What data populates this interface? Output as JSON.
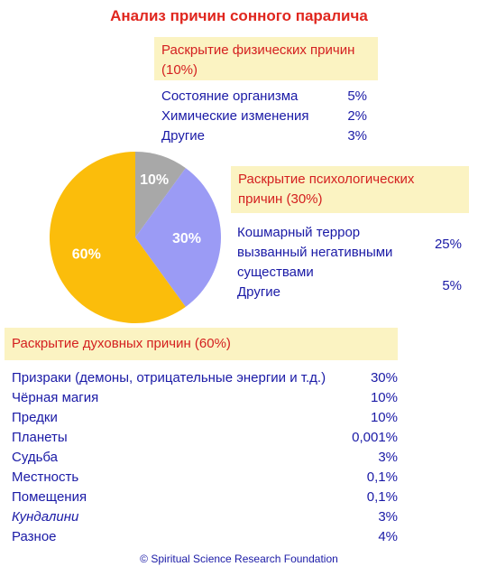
{
  "title": "Анализ причин сонного паралича",
  "physical": {
    "heading": "Раскрытие физических причин (10%)",
    "items": [
      {
        "label": "Состояние организма",
        "value": "5%"
      },
      {
        "label": "Химические изменения",
        "value": "2%"
      },
      {
        "label": "Другие",
        "value": "3%"
      }
    ]
  },
  "psychological": {
    "heading": "Раскрытие психологических причин (30%)",
    "items": [
      {
        "label": "Кошмарный террор вызванный негативными существами",
        "value": "25%"
      },
      {
        "label": "Другие",
        "value": "5%"
      }
    ]
  },
  "spiritual": {
    "heading": "Раскрытие духовных причин (60%)",
    "items": [
      {
        "label": "Призраки (демоны, отрицательные энергии и т.д.)",
        "value": "30%"
      },
      {
        "label": "Чёрная магия",
        "value": "10%"
      },
      {
        "label": "Предки",
        "value": "10%"
      },
      {
        "label": "Планеты",
        "value": "0,001%"
      },
      {
        "label": "Судьба",
        "value": "3%"
      },
      {
        "label": "Местность",
        "value": "0,1%"
      },
      {
        "label": "Помещения",
        "value": "0,1%"
      },
      {
        "label": "Кундалини",
        "value": "3%"
      },
      {
        "label": "Разное",
        "value": "4%"
      }
    ]
  },
  "footer": "© Spiritual Science Research Foundation",
  "chart_data": {
    "type": "pie",
    "title": "Анализ причин сонного паралича",
    "slices": [
      {
        "label": "10%",
        "value": 10,
        "color": "#a8a8a8"
      },
      {
        "label": "30%",
        "value": 30,
        "color": "#9b9bf5"
      },
      {
        "label": "60%",
        "value": 60,
        "color": "#fbbd0b"
      }
    ]
  }
}
